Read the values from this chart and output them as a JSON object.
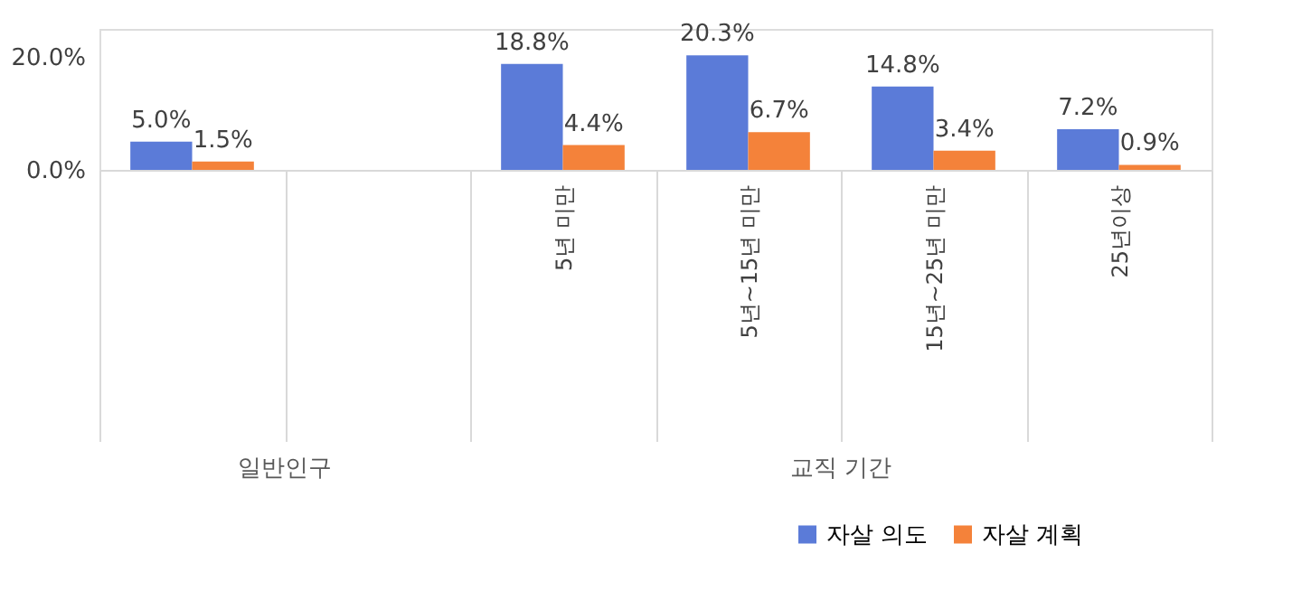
{
  "chart_data": {
    "type": "bar",
    "categories": [
      null,
      null,
      "5년 미만",
      "5년~15년 미만",
      "15년~25년 미만",
      "25년이상"
    ],
    "series": [
      {
        "name": "자살 의도",
        "color": "#5b7bd8",
        "values": [
          5.0,
          null,
          18.8,
          20.3,
          14.8,
          7.2
        ],
        "value_labels": [
          "5.0%",
          null,
          "18.8%",
          "20.3%",
          "14.8%",
          "7.2%"
        ]
      },
      {
        "name": "자살 계획",
        "color": "#f4823a",
        "values": [
          1.5,
          null,
          4.4,
          6.7,
          3.4,
          0.9
        ],
        "value_labels": [
          "1.5%",
          null,
          "4.4%",
          "6.7%",
          "3.4%",
          "0.9%"
        ]
      }
    ],
    "ylim": [
      0,
      25
    ],
    "yticks": [
      {
        "value": 0,
        "label": "0.0%"
      },
      {
        "value": 20,
        "label": "20.0%"
      }
    ],
    "annotations": [
      "일반인구",
      "교직 기간"
    ],
    "grid": false,
    "legend": "bottom right"
  }
}
